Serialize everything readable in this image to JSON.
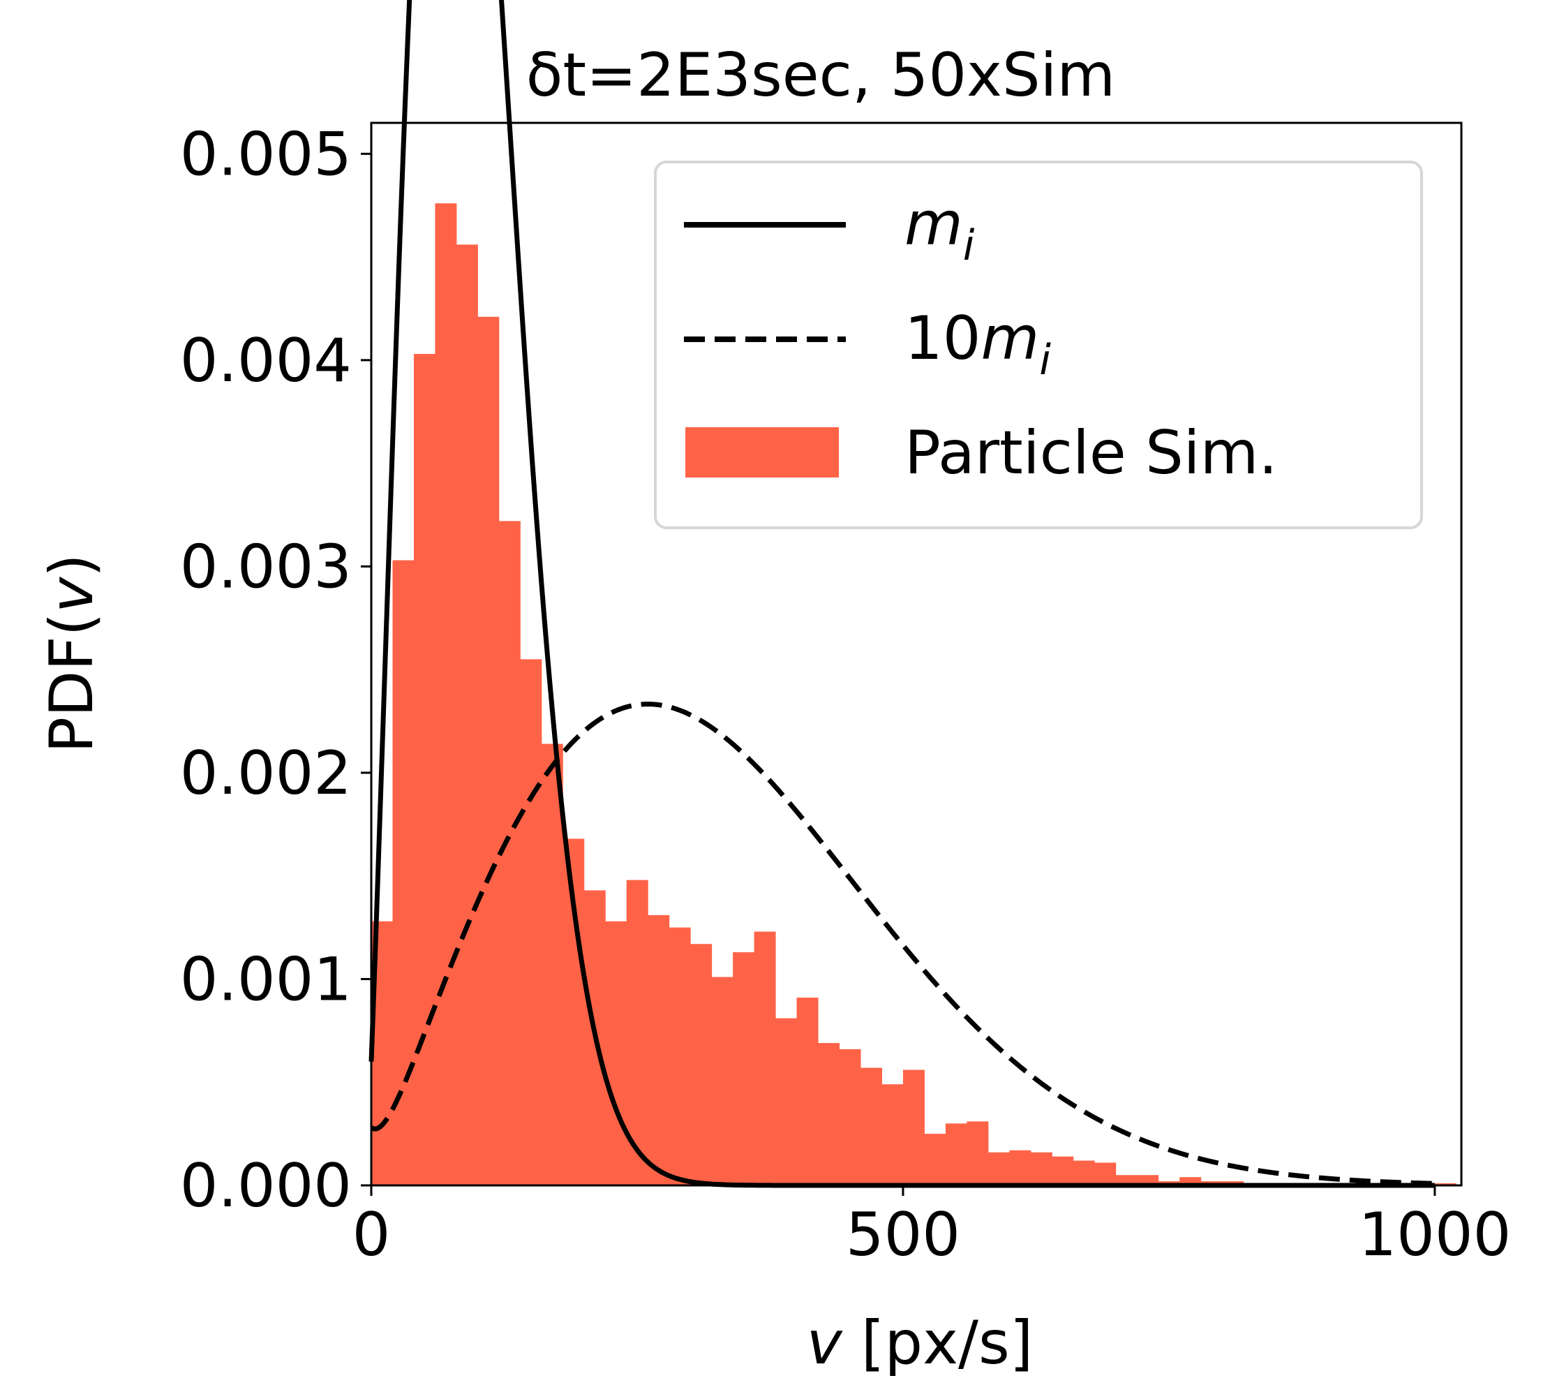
{
  "chart_data": {
    "type": "histogram",
    "title": "δt=2E3sec, 50xSim",
    "xlabel_var": "v",
    "xlabel_unit": " [px/s]",
    "ylabel_prefix": "PDF(",
    "ylabel_var": "v",
    "ylabel_suffix": ")",
    "xlim": [
      0,
      1025
    ],
    "ylim": [
      0,
      0.00515
    ],
    "xticks": [
      0,
      500,
      1000
    ],
    "xtick_labels": [
      "0",
      "500",
      "1000"
    ],
    "yticks": [
      0,
      0.001,
      0.002,
      0.003,
      0.004,
      0.005
    ],
    "ytick_labels": [
      "0.000",
      "0.001",
      "0.002",
      "0.003",
      "0.004",
      "0.005"
    ],
    "grid": false,
    "legend_position": "top-right",
    "histogram": {
      "name": "Particle Sim.",
      "color": "#ff6347",
      "bin_edges": [
        0,
        20,
        40,
        60,
        80,
        100,
        120,
        140,
        160,
        180,
        200,
        220,
        240,
        260,
        280,
        300,
        320,
        340,
        360,
        380,
        400,
        420,
        440,
        460,
        480,
        500,
        520,
        540,
        560,
        580,
        600,
        620,
        640,
        660,
        680,
        700,
        720,
        740,
        760,
        780,
        800,
        820,
        840,
        860,
        880,
        900,
        920,
        940,
        960,
        980,
        1000,
        1020
      ],
      "values": [
        0.00128,
        0.00303,
        0.00403,
        0.00476,
        0.00456,
        0.00421,
        0.00322,
        0.00255,
        0.00214,
        0.00168,
        0.00143,
        0.00128,
        0.00148,
        0.00131,
        0.00125,
        0.00117,
        0.00101,
        0.00113,
        0.00123,
        0.00081,
        0.00091,
        0.00069,
        0.00066,
        0.00057,
        0.00049,
        0.00056,
        0.00025,
        0.0003,
        0.00031,
        0.00016,
        0.00017,
        0.00016,
        0.00014,
        0.00012,
        0.00011,
        5e-05,
        5e-05,
        2e-05,
        4e-05,
        2e-05,
        2e-05,
        1e-05,
        1e-05,
        1e-05,
        1e-05,
        1e-05,
        1e-05,
        0.0,
        0.0,
        1e-05,
        1e-05
      ]
    },
    "series": [
      {
        "name": "m_i",
        "label_var": "m",
        "label_sub": "i",
        "label_prefix": "",
        "style": "solid",
        "color": "#000000",
        "curve": "rayleigh",
        "sigma": 75,
        "offset": 0.0006
      },
      {
        "name": "10m_i",
        "label_var": "m",
        "label_sub": "i",
        "label_prefix": "10",
        "style": "dashed",
        "color": "#000000",
        "curve": "rayleigh",
        "sigma": 260,
        "offset": 0.00028
      }
    ]
  }
}
